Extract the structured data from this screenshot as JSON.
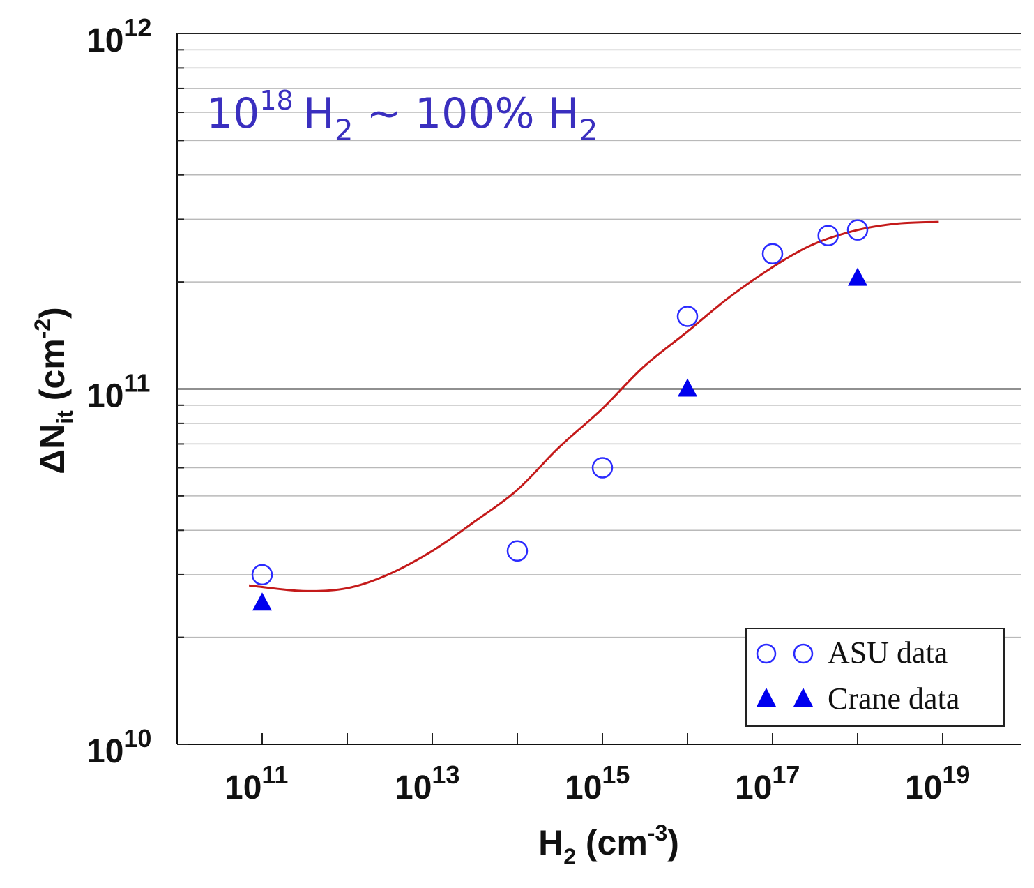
{
  "chart_data": {
    "type": "scatter",
    "title": "",
    "annotation": {
      "base": "10",
      "exp": "18",
      "h_symbol": "H",
      "h_sub": "2",
      "middle": " ~ 100% ",
      "color": "#3a2fbf"
    },
    "xlabel": {
      "main": "H",
      "sub": "2",
      "unit_pre": " (cm",
      "unit_exp": "-3",
      "unit_post": ")"
    },
    "ylabel": {
      "main": "ΔN",
      "sub": "it",
      "unit_pre": " (cm",
      "unit_exp": "-2",
      "unit_post": ")"
    },
    "xscale": "log",
    "yscale": "log",
    "xlim_exp": [
      10,
      20
    ],
    "ylim_exp": [
      10,
      12
    ],
    "x_ticks": [
      {
        "base": "10",
        "exp": "11",
        "value_exp": 11
      },
      {
        "base": "10",
        "exp": "13",
        "value_exp": 13
      },
      {
        "base": "10",
        "exp": "15",
        "value_exp": 15
      },
      {
        "base": "10",
        "exp": "17",
        "value_exp": 17
      },
      {
        "base": "10",
        "exp": "19",
        "value_exp": 19
      }
    ],
    "y_ticks": [
      {
        "base": "10",
        "exp": "10",
        "value_exp": 10
      },
      {
        "base": "10",
        "exp": "11",
        "value_exp": 11
      },
      {
        "base": "10",
        "exp": "12",
        "value_exp": 12
      }
    ],
    "grid": true,
    "series": [
      {
        "name": "ASU data",
        "marker": "open-circle",
        "color": "#2b2bff",
        "points": [
          {
            "x": 100000000000.0,
            "y": 30000000000.0
          },
          {
            "x": 100000000000000.0,
            "y": 35000000000.0
          },
          {
            "x": 1000000000000000.0,
            "y": 60000000000.0
          },
          {
            "x": 1e+16,
            "y": 160000000000.0
          },
          {
            "x": 1e+17,
            "y": 240000000000.0
          },
          {
            "x": 4.5e+17,
            "y": 270000000000.0
          },
          {
            "x": 1e+18,
            "y": 280000000000.0
          }
        ]
      },
      {
        "name": "Crane data",
        "marker": "filled-triangle",
        "color": "#0000ee",
        "points": [
          {
            "x": 100000000000.0,
            "y": 25000000000.0
          },
          {
            "x": 1e+16,
            "y": 100000000000.0
          },
          {
            "x": 1e+18,
            "y": 205000000000.0
          }
        ]
      },
      {
        "name": "fit",
        "marker": "line",
        "color": "#c41a1a",
        "points": [
          {
            "x": 70000000000.0,
            "y": 28000000000.0
          },
          {
            "x": 300000000000.0,
            "y": 27000000000.0
          },
          {
            "x": 1000000000000.0,
            "y": 27500000000.0
          },
          {
            "x": 3000000000000.0,
            "y": 30000000000.0
          },
          {
            "x": 10000000000000.0,
            "y": 35000000000.0
          },
          {
            "x": 30000000000000.0,
            "y": 42000000000.0
          },
          {
            "x": 100000000000000.0,
            "y": 52000000000.0
          },
          {
            "x": 300000000000000.0,
            "y": 68000000000.0
          },
          {
            "x": 1000000000000000.0,
            "y": 88000000000.0
          },
          {
            "x": 3000000000000000.0,
            "y": 115000000000.0
          },
          {
            "x": 1e+16,
            "y": 145000000000.0
          },
          {
            "x": 3e+16,
            "y": 180000000000.0
          },
          {
            "x": 1e+17,
            "y": 220000000000.0
          },
          {
            "x": 3e+17,
            "y": 255000000000.0
          },
          {
            "x": 1e+18,
            "y": 280000000000.0
          },
          {
            "x": 3e+18,
            "y": 292000000000.0
          },
          {
            "x": 9e+18,
            "y": 295000000000.0
          }
        ]
      }
    ],
    "legend": {
      "position": "bottom-right",
      "entries": [
        {
          "label": "ASU data",
          "marker": "open-circle"
        },
        {
          "label": "Crane data",
          "marker": "filled-triangle"
        }
      ]
    }
  }
}
